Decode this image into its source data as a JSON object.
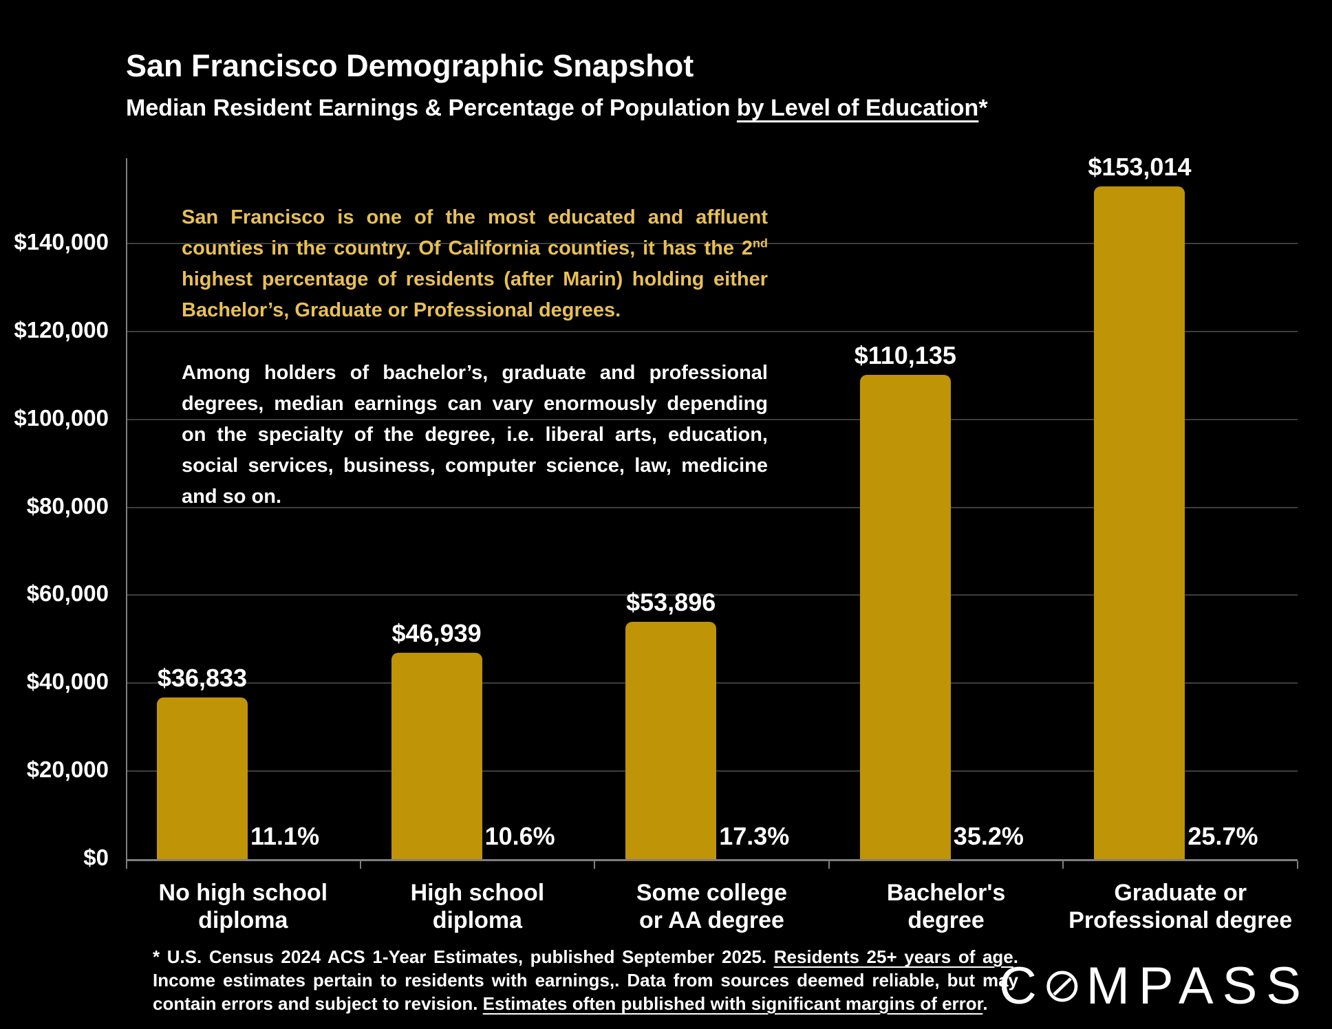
{
  "header": {
    "title": "San Francisco Demographic Snapshot",
    "subtitle_prefix": "Median Resident Earnings & Percentage of Population ",
    "subtitle_underlined": "by Level of Education",
    "subtitle_suffix": "*"
  },
  "notes": {
    "gold_pre": "San Francisco is one of the most educated and affluent counties in the country. Of California counties, it has the 2",
    "gold_sup": "nd",
    "gold_post": " highest percentage of residents (after Marin) holding either Bachelor’s, Graduate or Professional degrees.",
    "white": "Among holders of bachelor’s, graduate and professional degrees, median earnings can vary enormously depending on the specialty of the degree, i.e. liberal arts, education, social services, business, computer science, law, medicine and so on."
  },
  "footnote": {
    "p1": "* U.S. Census 2024 ACS 1-Year Estimates, published September 2025. ",
    "u1": "Residents 25+ years of age",
    "p2": ". Income estimates pertain to residents with earnings,. Data from sources deemed reliable, but may contain errors and subject to revision. ",
    "u2": "Estimates often published with significant margins of error",
    "p3": "."
  },
  "logo": {
    "pre": "C",
    "post": "MPASS",
    "o_icon": "compass-o-needle-icon"
  },
  "colors": {
    "background": "#000000",
    "bar": "#BF9406",
    "gold_text": "#E8C054",
    "gridline": "#3E3E3E",
    "axis": "#7F7F7F",
    "text": "#FFFFFF"
  },
  "chart_data": {
    "type": "bar",
    "title": "San Francisco Demographic Snapshot",
    "subtitle": "Median Resident Earnings & Percentage of Population by Level of Education*",
    "categories": [
      "No high school diploma",
      "High school diploma",
      "Some college or AA degree",
      "Bachelor's degree",
      "Graduate or Professional degree"
    ],
    "category_labels": [
      "No high school\ndiploma",
      "High school\ndiploma",
      "Some college\nor AA degree",
      "Bachelor's\ndegree",
      "Graduate or\nProfessional degree"
    ],
    "series": [
      {
        "name": "Median resident earnings (USD)",
        "values": [
          36833,
          46939,
          53896,
          110135,
          153014
        ]
      },
      {
        "name": "Percentage of population",
        "values": [
          11.1,
          10.6,
          17.3,
          35.2,
          25.7
        ]
      }
    ],
    "value_labels": [
      "$36,833",
      "$46,939",
      "$53,896",
      "$110,135",
      "$153,014"
    ],
    "percent_labels": [
      "11.1%",
      "10.6%",
      "17.3%",
      "35.2%",
      "25.7%"
    ],
    "xlabel": "",
    "ylabel": "",
    "ylim": [
      0,
      160000
    ],
    "ytick_values": [
      0,
      20000,
      40000,
      60000,
      80000,
      100000,
      120000,
      140000
    ],
    "ytick_labels": [
      "$0",
      "$20,000",
      "$40,000",
      "$60,000",
      "$80,000",
      "$100,000",
      "$120,000",
      "$140,000"
    ],
    "grid": true,
    "legend": false
  }
}
